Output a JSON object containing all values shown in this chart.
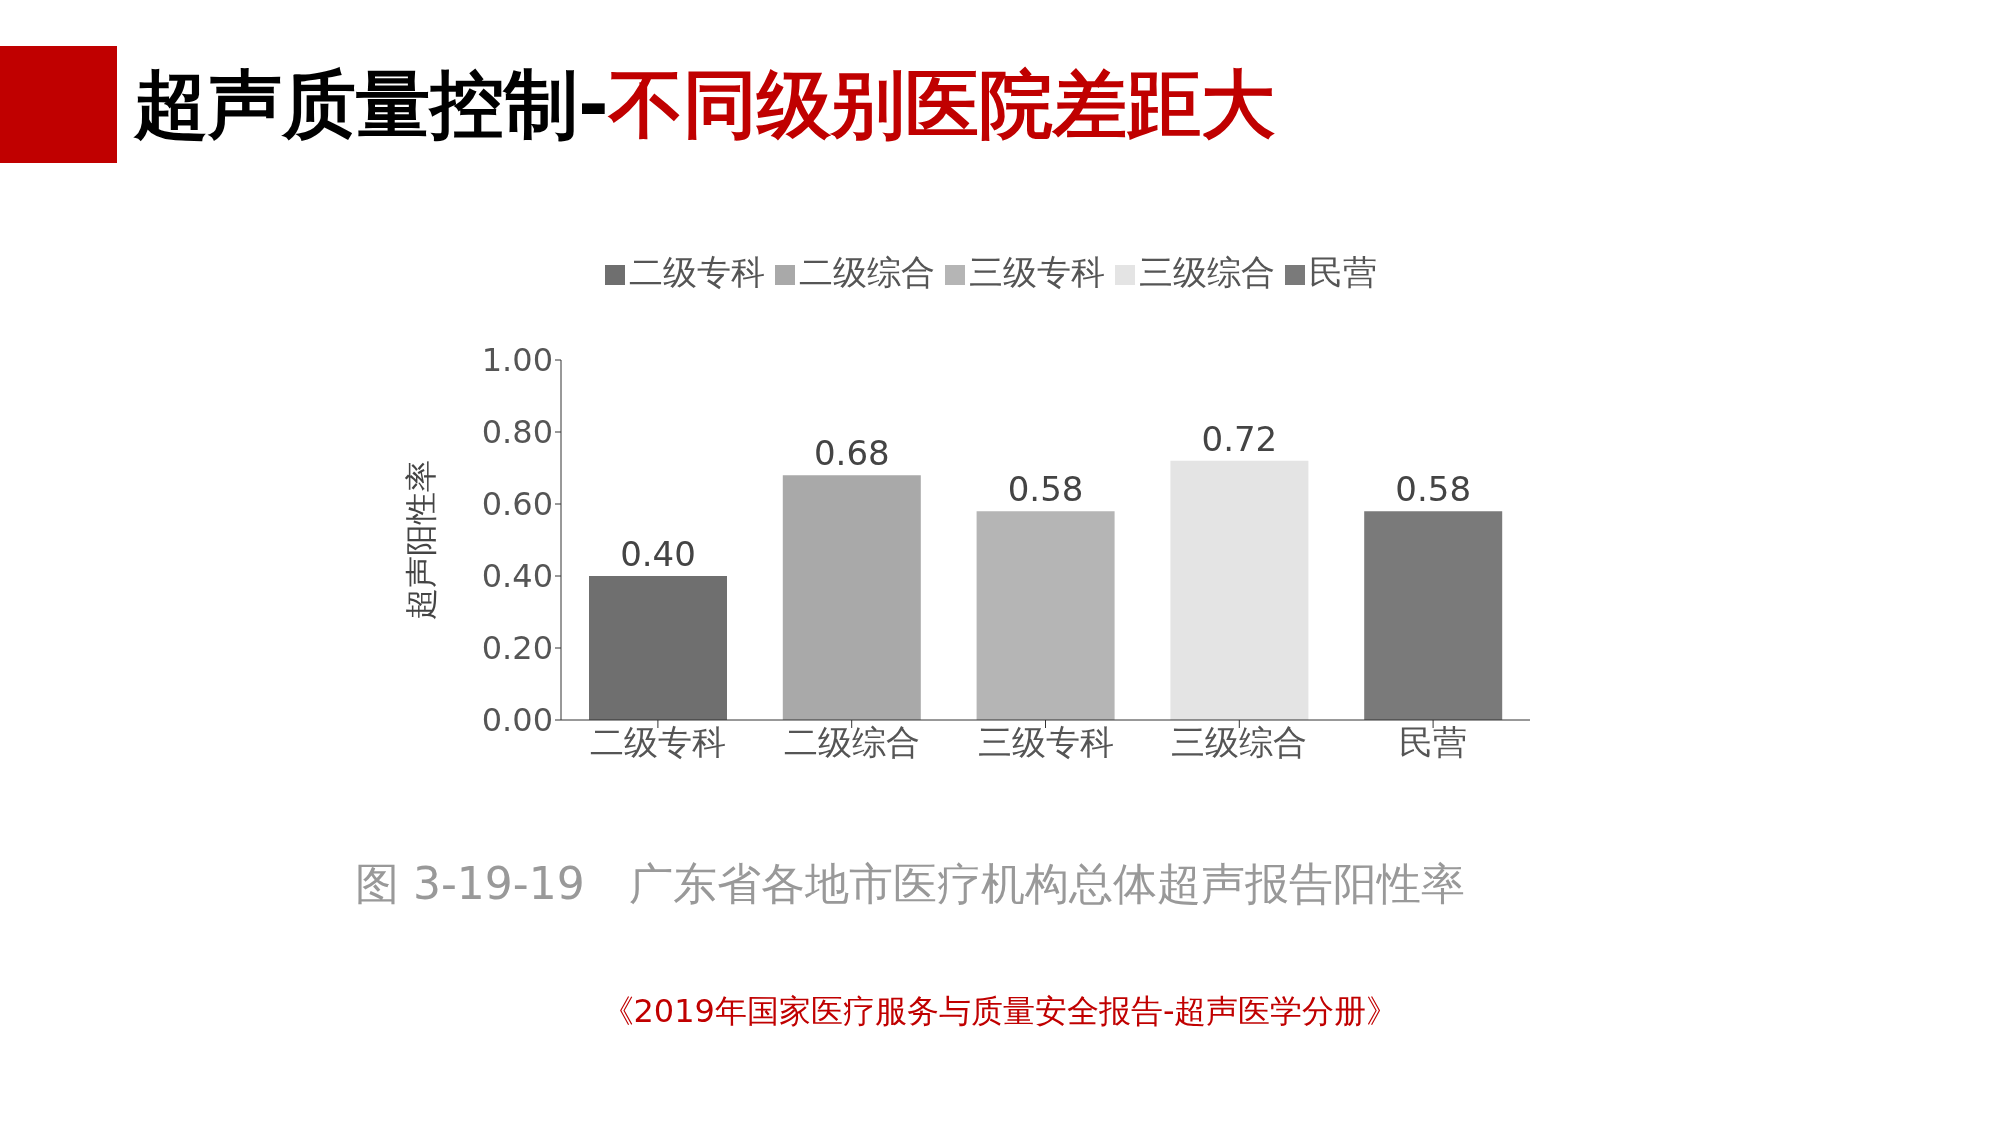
{
  "chart_data": {
    "type": "bar",
    "title": "超声质量控制-不同级别医院差距大",
    "ylabel": "超声阳性率",
    "categories": [
      "二级专科",
      "二级综合",
      "三级专科",
      "三级综合",
      "民营"
    ],
    "stacked": true,
    "series": [
      {
        "name": "二级专科",
        "color": "#6f6f6f",
        "values": [
          0.4,
          null,
          null,
          null,
          null
        ],
        "value_labels": [
          "0.40",
          null,
          null,
          null,
          null
        ]
      },
      {
        "name": "二级综合",
        "color": "#a9a9a9",
        "values": [
          null,
          0.68,
          null,
          null,
          null
        ],
        "value_labels": [
          null,
          "0.68",
          null,
          null,
          null
        ]
      },
      {
        "name": "三级专科",
        "color": "#b5b5b5",
        "values": [
          null,
          null,
          0.58,
          null,
          null
        ],
        "value_labels": [
          null,
          null,
          "0.58",
          null,
          null
        ]
      },
      {
        "name": "三级综合",
        "color": "#e4e4e4",
        "values": [
          null,
          null,
          null,
          0.72,
          null
        ],
        "value_labels": [
          null,
          null,
          null,
          "0.72",
          null
        ]
      },
      {
        "name": "民营",
        "color": "#7a7a7a",
        "values": [
          null,
          null,
          null,
          null,
          0.58
        ],
        "value_labels": [
          null,
          null,
          null,
          null,
          "0.58"
        ]
      }
    ],
    "ylim": [
      0,
      1
    ],
    "yticks": [
      {
        "value": 0,
        "label": "0.00"
      },
      {
        "value": 0.2,
        "label": "0.20"
      },
      {
        "value": 0.4,
        "label": "0.40"
      },
      {
        "value": 0.6,
        "label": "0.60"
      },
      {
        "value": 0.8,
        "label": "0.80"
      },
      {
        "value": 1,
        "label": "1.00"
      }
    ],
    "legend": "top",
    "annotations": [
      "图 3-19-19　广东省各地市医疗机构总体超声报告阳性率",
      "《2019年国家医疗服务与质量安全报告-超声医学分册》"
    ]
  }
}
